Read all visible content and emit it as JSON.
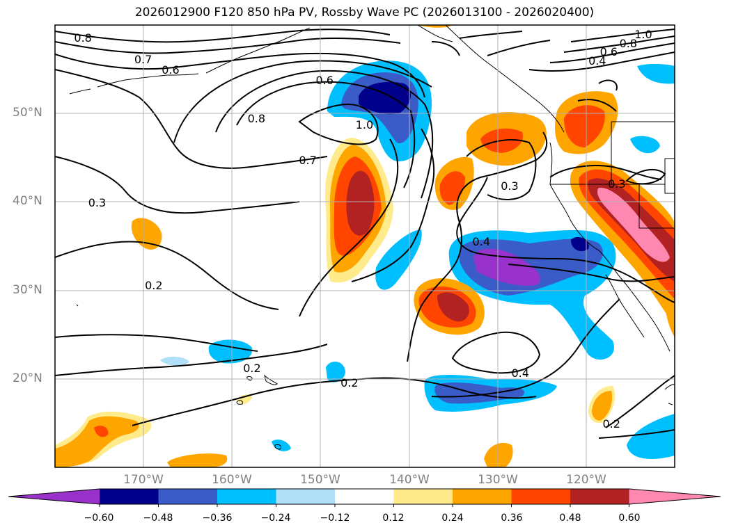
{
  "title": "2026012900 F120 850 hPa PV, Rossby Wave PC (2026013100 - 2026020400)",
  "map": {
    "projection": "equirectangular",
    "region_lon": [
      -180,
      -110
    ],
    "region_lat": [
      10,
      60
    ],
    "lat_ticks": [
      {
        "value": 50,
        "label": "50°N"
      },
      {
        "value": 40,
        "label": "40°N"
      },
      {
        "value": 30,
        "label": "30°N"
      },
      {
        "value": 20,
        "label": "20°N"
      }
    ],
    "lon_ticks": [
      {
        "value": -170,
        "label": "170°W"
      },
      {
        "value": -160,
        "label": "160°W"
      },
      {
        "value": -150,
        "label": "150°W"
      },
      {
        "value": -140,
        "label": "140°W"
      },
      {
        "value": -130,
        "label": "130°W"
      },
      {
        "value": -120,
        "label": "120°W"
      }
    ],
    "gridlines": true,
    "grid_color": "#b0b0b0"
  },
  "contour_labels": [
    {
      "text": "0.8",
      "lon": -176.9,
      "lat": 58.5
    },
    {
      "text": "0.7",
      "lon": -170.1,
      "lat": 56.1
    },
    {
      "text": "0.6",
      "lon": -167.0,
      "lat": 54.9
    },
    {
      "text": "0.6",
      "lon": -149.6,
      "lat": 53.7
    },
    {
      "text": "0.8",
      "lon": -157.3,
      "lat": 49.4
    },
    {
      "text": "1.0",
      "lon": -145.1,
      "lat": 48.7
    },
    {
      "text": "0.7",
      "lon": -151.5,
      "lat": 44.7
    },
    {
      "text": "0.3",
      "lon": -175.3,
      "lat": 39.9
    },
    {
      "text": "0.3",
      "lon": -128.7,
      "lat": 41.8
    },
    {
      "text": "0.3",
      "lon": -116.6,
      "lat": 42.0
    },
    {
      "text": "0.2",
      "lon": -168.9,
      "lat": 30.5
    },
    {
      "text": "0.4",
      "lon": -131.9,
      "lat": 35.5
    },
    {
      "text": "0.2",
      "lon": -157.8,
      "lat": 21.2
    },
    {
      "text": "0.2",
      "lon": -146.8,
      "lat": 19.5
    },
    {
      "text": "0.4",
      "lon": -127.5,
      "lat": 20.6
    },
    {
      "text": "0.2",
      "lon": -117.2,
      "lat": 14.9
    },
    {
      "text": "1.0",
      "lon": -113.6,
      "lat": 58.9
    },
    {
      "text": "0.8",
      "lon": -115.3,
      "lat": 57.9
    },
    {
      "text": "0.6",
      "lon": -117.5,
      "lat": 56.9
    },
    {
      "text": "0.4",
      "lon": -118.8,
      "lat": 55.9
    }
  ],
  "colorbar": {
    "levels": [
      -0.72,
      -0.6,
      -0.48,
      -0.36,
      -0.24,
      -0.12,
      0.12,
      0.24,
      0.36,
      0.48,
      0.6,
      0.72
    ],
    "colors": [
      "#9932cc",
      "#00008b",
      "#3a5cc8",
      "#00bfff",
      "#b0e0f8",
      "#ffffff",
      "#ffeb8c",
      "#ffa500",
      "#ff4500",
      "#b22222",
      "#ff88b0"
    ],
    "extend": "both",
    "tick_labels": [
      "−0.60",
      "−0.48",
      "−0.36",
      "−0.24",
      "−0.12",
      "0.12",
      "0.24",
      "0.36",
      "0.48",
      "0.60"
    ]
  }
}
